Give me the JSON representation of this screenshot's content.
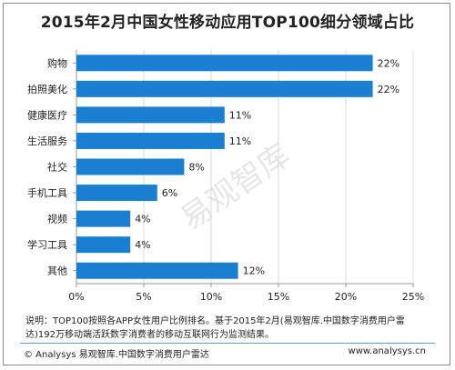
{
  "chart_data": {
    "type": "bar",
    "orientation": "horizontal",
    "title": "2015年2月中国女性移动应用TOP100细分领域占比",
    "categories": [
      "购物",
      "拍照美化",
      "健康医疗",
      "生活服务",
      "社交",
      "手机工具",
      "视频",
      "学习工具",
      "其他"
    ],
    "values": [
      22,
      22,
      11,
      11,
      8,
      6,
      4,
      4,
      12
    ],
    "data_labels": [
      "22%",
      "22%",
      "11%",
      "11%",
      "8%",
      "6%",
      "4%",
      "4%",
      "12%"
    ],
    "xlim": [
      0,
      25
    ],
    "xticks": [
      0,
      5,
      10,
      15,
      20,
      25
    ],
    "xtick_labels": [
      "0%",
      "5%",
      "10%",
      "15%",
      "20%",
      "25%"
    ],
    "grid": true,
    "bar_color": "#1a7fd0",
    "axis_color": "#999999"
  },
  "note": "说明：TOP100按照各APP女性用户比例排名。基于2015年2月(易观智库.中国数字消费用户雷达)192万移动端活跃数字消费者的移动互联网行为监测结果。",
  "source": "© Analysys 易观智库.中国数字消费用户雷达",
  "website": "www.analysys.cn",
  "watermark": "易观智库"
}
